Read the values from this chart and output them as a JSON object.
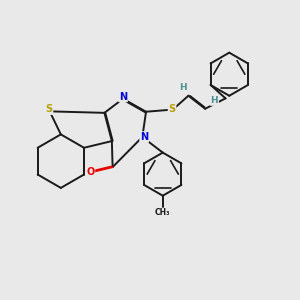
{
  "background_color": "#e9e9e9",
  "C": "#1a1a1a",
  "S": "#b8a000",
  "N": "#0000ee",
  "O": "#ee0000",
  "H": "#4a9090",
  "figsize": [
    3.0,
    3.0
  ],
  "dpi": 100
}
